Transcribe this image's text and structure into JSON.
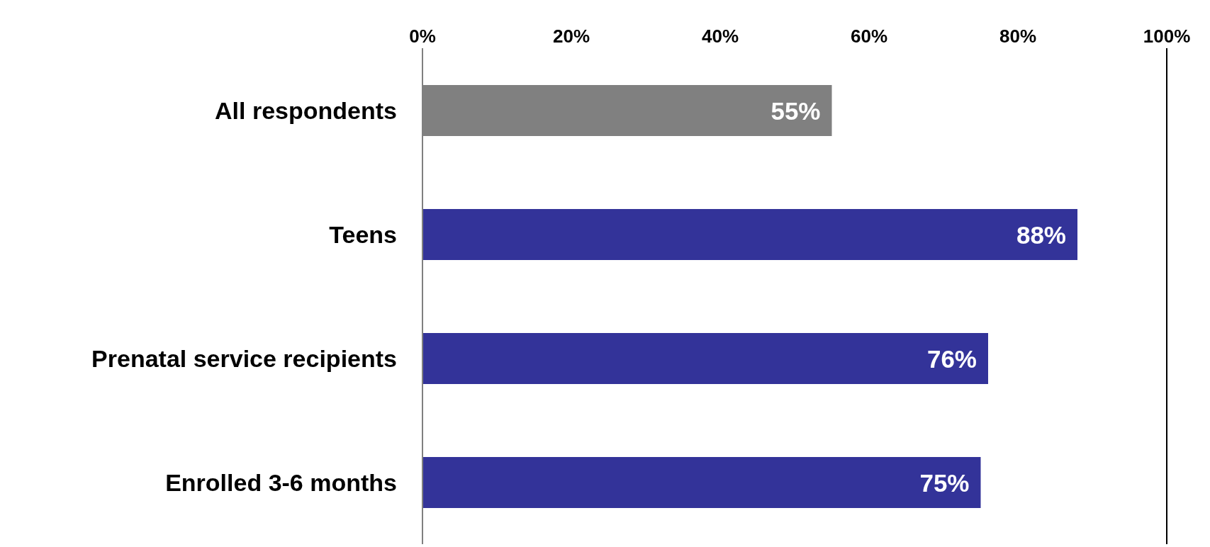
{
  "chart_data": {
    "type": "bar",
    "orientation": "horizontal",
    "categories": [
      "All respondents",
      "Teens",
      "Prenatal service recipients",
      "Enrolled 3-6 months "
    ],
    "values": [
      55,
      88,
      76,
      75
    ],
    "colors": [
      "#808080",
      "#333399",
      "#333399",
      "#333399"
    ],
    "value_labels": [
      "55%",
      "88%",
      "76%",
      "75%"
    ],
    "xlim": [
      0,
      100
    ],
    "xticks": [
      {
        "value": 0,
        "label": "0%"
      },
      {
        "value": 20,
        "label": "20%"
      },
      {
        "value": 40,
        "label": "40%"
      },
      {
        "value": 60,
        "label": "60%"
      },
      {
        "value": 80,
        "label": "80%"
      },
      {
        "value": 100,
        "label": "100%"
      }
    ],
    "grid": false,
    "legend": false
  }
}
